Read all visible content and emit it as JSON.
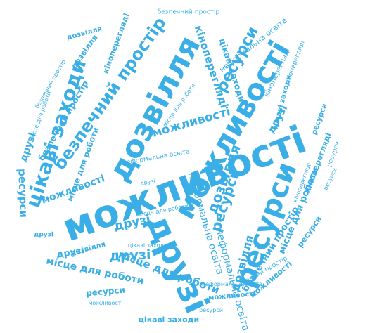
{
  "colors": {
    "word": "#3aaee6",
    "background": "#ffffff"
  },
  "words": [
    "можливості",
    "дозвілля",
    "друзі",
    "ресурси",
    "можливості",
    "безпечний простір",
    "цікаві заходи",
    "дозвілля",
    "ресурси",
    "кінопереглядi",
    "можливості",
    "неформальна освіта",
    "друзі",
    "місце для роботи",
    "друзі",
    "місце для роботи",
    "цікаві заходи",
    "безпечний простір",
    "неформальна освіта",
    "кінопереглядi",
    "ресурси",
    "дозвілля",
    "ресурси",
    "можливості",
    "дозвілля",
    "друзі",
    "дозвілля",
    "друзі",
    "місце для роботи",
    "безпечний простір",
    "ресурси",
    "друзі",
    "неформальна освіта",
    "ресурси",
    "можливості",
    "цікаві заходи",
    "неформальна освіта",
    "місце для роботи",
    "кінопереглядi",
    "ресурси",
    "безпечний простір",
    "цікаві заходи",
    "дозвілля",
    "можливості",
    "кінопереглядi",
    "неформальна освіта",
    "місце для роботи",
    "ресурси",
    "друзі",
    "кінопереглядi",
    "безпечний простір",
    "місце для роботи",
    "ресурси",
    "можливості",
    "безпечний простір",
    "місце для роботи",
    "кінопереглядi",
    "друзі",
    "ресурси",
    "цікаві заходи"
  ]
}
